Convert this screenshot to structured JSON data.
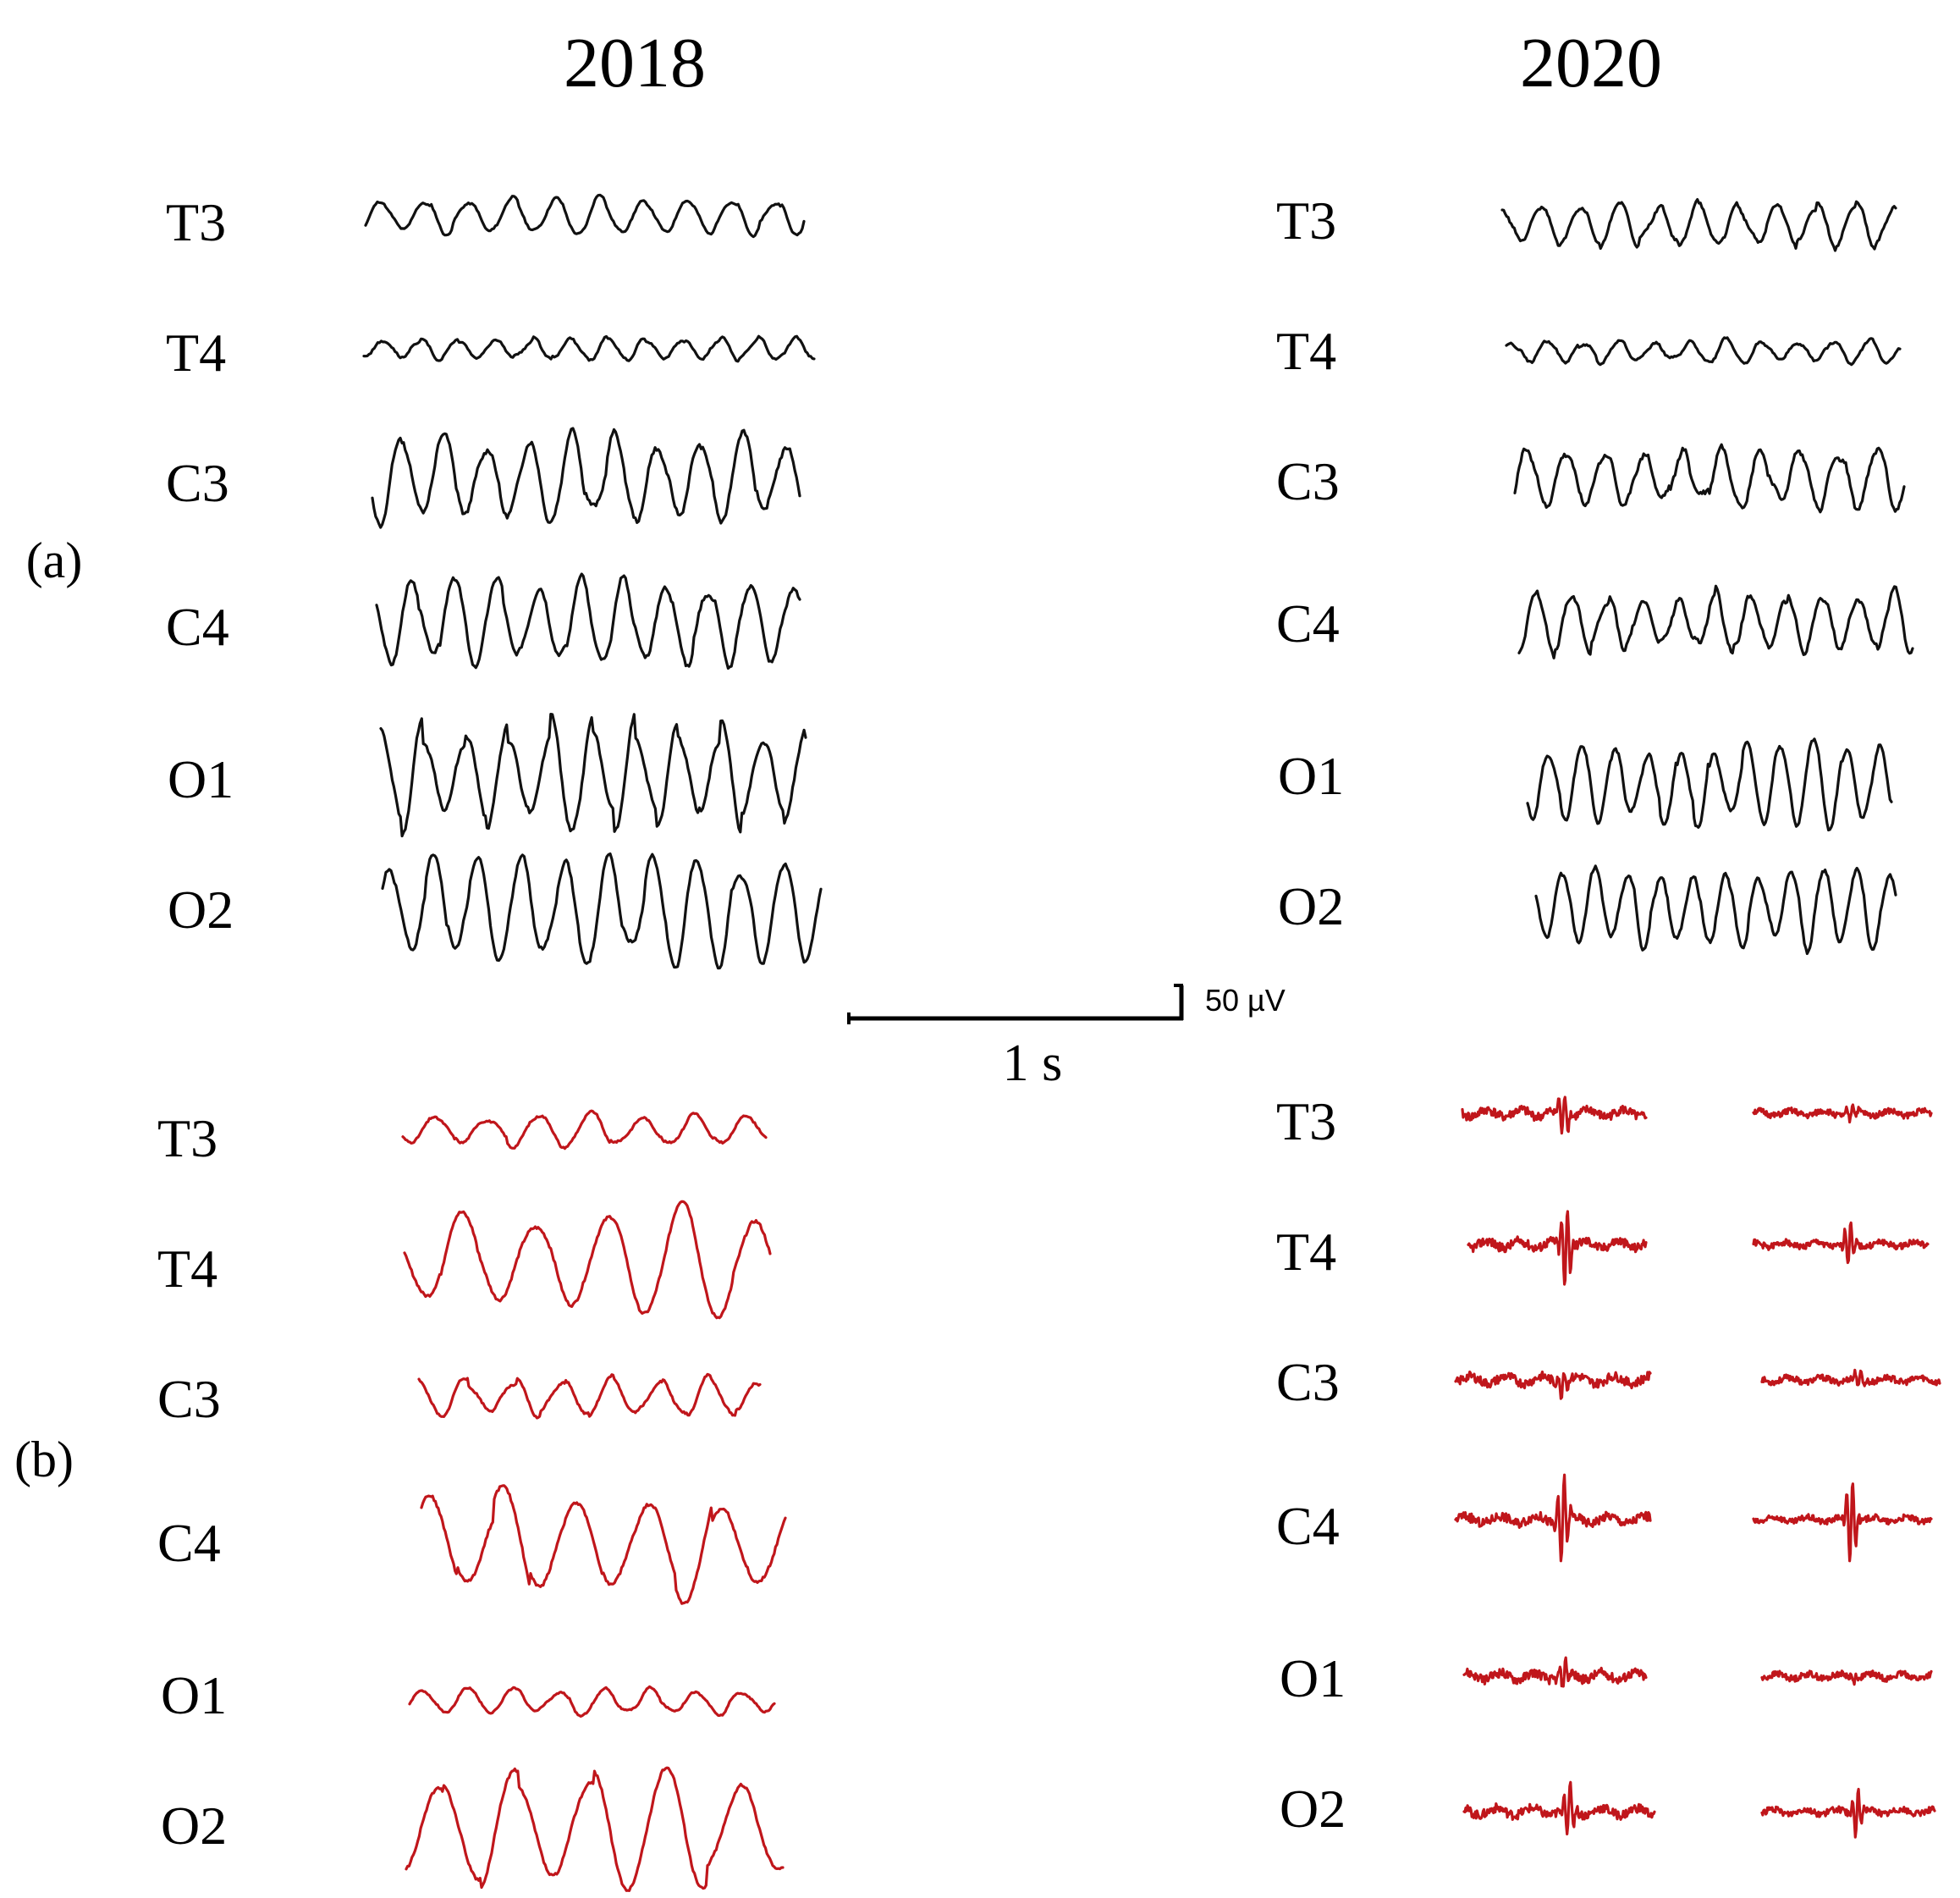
{
  "figure": {
    "years": [
      "2018",
      "2020"
    ],
    "panels": [
      "(a)",
      "(b)"
    ],
    "channels": [
      "T3",
      "T4",
      "C3",
      "C4",
      "O1",
      "O2"
    ],
    "scale_bar": {
      "time_label": "1 s",
      "amplitude_label": "50 µV"
    },
    "colors": {
      "panel_a_trace": "#111111",
      "panel_b_trace": "#c0161b",
      "text": "#000000"
    }
  },
  "traces": {
    "a_2018": [
      {
        "channel": "T3",
        "cycles": 10,
        "amplitude": 0.35,
        "noise": 0.1,
        "seed": 11
      },
      {
        "channel": "T4",
        "cycles": 12,
        "amplitude": 0.2,
        "noise": 0.18,
        "seed": 12
      },
      {
        "channel": "C3",
        "cycles": 10,
        "amplitude": 0.85,
        "noise": 0.1,
        "seed": 13
      },
      {
        "channel": "C4",
        "cycles": 10,
        "amplitude": 0.8,
        "noise": 0.1,
        "seed": 14
      },
      {
        "channel": "O1",
        "cycles": 10,
        "amplitude": 1.0,
        "noise": 0.08,
        "seed": 15
      },
      {
        "channel": "O2",
        "cycles": 10,
        "amplitude": 1.0,
        "noise": 0.08,
        "seed": 16
      }
    ],
    "a_2020": [
      {
        "channel": "T3",
        "cycles": 10,
        "amplitude": 0.45,
        "noise": 0.15,
        "seed": 21
      },
      {
        "channel": "T4",
        "cycles": 11,
        "amplitude": 0.25,
        "noise": 0.18,
        "seed": 22
      },
      {
        "channel": "C3",
        "cycles": 10,
        "amplitude": 0.6,
        "noise": 0.18,
        "seed": 23
      },
      {
        "channel": "C4",
        "cycles": 11,
        "amplitude": 0.65,
        "noise": 0.15,
        "seed": 24
      },
      {
        "channel": "O1",
        "cycles": 11,
        "amplitude": 0.9,
        "noise": 0.08,
        "seed": 25
      },
      {
        "channel": "O2",
        "cycles": 11,
        "amplitude": 0.9,
        "noise": 0.08,
        "seed": 26
      }
    ],
    "b_2018": [
      {
        "channel": "T3",
        "cycles": 7,
        "amplitude": 0.3,
        "noise": 0.12,
        "seed": 31
      },
      {
        "channel": "T4",
        "cycles": 5,
        "amplitude": 1.0,
        "noise": 0.06,
        "seed": 32
      },
      {
        "channel": "C3",
        "cycles": 7,
        "amplitude": 0.35,
        "noise": 0.12,
        "seed": 33
      },
      {
        "channel": "C4",
        "cycles": 5,
        "amplitude": 1.0,
        "noise": 0.06,
        "seed": 34
      },
      {
        "channel": "O1",
        "cycles": 8,
        "amplitude": 0.25,
        "noise": 0.12,
        "seed": 35
      },
      {
        "channel": "O2",
        "cycles": 5,
        "amplitude": 1.05,
        "noise": 0.06,
        "seed": 36
      }
    ],
    "b_2020_left": [
      {
        "channel": "T3",
        "spike": 0.5,
        "seed": 41
      },
      {
        "channel": "T4",
        "spike": 1.0,
        "seed": 42
      },
      {
        "channel": "C3",
        "spike": 0.3,
        "seed": 43
      },
      {
        "channel": "C4",
        "spike": 1.0,
        "seed": 44
      },
      {
        "channel": "O1",
        "spike": 0.3,
        "seed": 45
      },
      {
        "channel": "O2",
        "spike": 0.6,
        "seed": 46
      }
    ],
    "b_2020_right": [
      {
        "channel": "T3",
        "spike": 0.2,
        "seed": 51
      },
      {
        "channel": "T4",
        "spike": 0.55,
        "seed": 52
      },
      {
        "channel": "C3",
        "spike": 0.25,
        "seed": 53
      },
      {
        "channel": "C4",
        "spike": 1.05,
        "seed": 54
      },
      {
        "channel": "O1",
        "spike": 0.1,
        "seed": 55
      },
      {
        "channel": "O2",
        "spike": 0.55,
        "seed": 56
      }
    ]
  }
}
